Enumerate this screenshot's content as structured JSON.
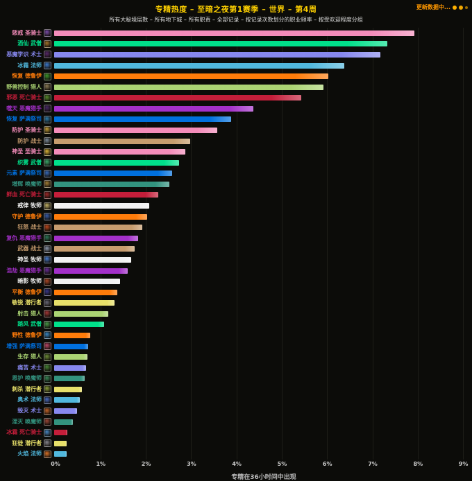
{
  "header": {
    "title": "专精热度 – 至暗之夜第1赛季 – 世界 – 第4周",
    "subtitle": "所有大秘境层数 – 所有地下城 – 所有职责 – 全部记录 – 按记录次数划分的职业频率 – 按受欢迎程度分组",
    "status": "更新数据中..."
  },
  "chart_data": {
    "type": "bar",
    "orientation": "horizontal",
    "title": "专精热度 – 至暗之夜第1赛季 – 世界 – 第4周",
    "subtitle": "所有大秘境层数 – 所有地下城 – 所有职责 – 全部记录 – 按记录次数划分的职业频率 – 按受欢迎程度分组",
    "xlabel": "专精在36小时间中出现",
    "xlim": [
      0,
      9.19
    ],
    "x_ticks": [
      "0%",
      "1%",
      "2%",
      "3%",
      "4%",
      "5%",
      "6%",
      "7%",
      "8%",
      "9%"
    ],
    "grid": true,
    "legend": "none",
    "unit": "percent",
    "rows": [
      {
        "label": "惩戒 圣骑士",
        "spec": "惩戒",
        "cls": "圣骑士",
        "value": 7.95,
        "color": "#F48CBA",
        "icon_color": "#7d4fae"
      },
      {
        "label": "酒仙 武僧",
        "spec": "酒仙",
        "cls": "武僧",
        "value": 7.35,
        "color": "#00E08A",
        "icon_color": "#a8782f"
      },
      {
        "label": "恶魔学识 术士",
        "spec": "恶魔学识",
        "cls": "术士",
        "value": 7.2,
        "color": "#8788EE",
        "icon_color": "#5a2a6e"
      },
      {
        "label": "冰霜 法师",
        "spec": "冰霜",
        "cls": "法师",
        "value": 6.4,
        "color": "#51B8DD",
        "icon_color": "#3e7fd4"
      },
      {
        "label": "恢复 德鲁伊",
        "spec": "恢复",
        "cls": "德鲁伊",
        "value": 6.05,
        "color": "#FF7C0A",
        "icon_color": "#3f9b2f"
      },
      {
        "label": "野兽控制 猎人",
        "spec": "野兽控制",
        "cls": "猎人",
        "value": 5.95,
        "color": "#ABD473",
        "icon_color": "#8f7f5a"
      },
      {
        "label": "邪恶 死亡骑士",
        "spec": "邪恶",
        "cls": "死亡骑士",
        "value": 5.45,
        "color": "#C41E3A",
        "icon_color": "#5a8f2f"
      },
      {
        "label": "噬天 恶魔猎手",
        "spec": "噬天",
        "cls": "恶魔猎手",
        "value": 4.4,
        "color": "#A330C9",
        "icon_color": "#4a2a6a"
      },
      {
        "label": "恢复 萨满祭司",
        "spec": "恢复",
        "cls": "萨满祭司",
        "value": 3.9,
        "color": "#0070DE",
        "icon_color": "#2f7fae"
      },
      {
        "label": "防护 圣骑士",
        "spec": "防护",
        "cls": "圣骑士",
        "value": 3.6,
        "color": "#F48CBA",
        "icon_color": "#c9a23a"
      },
      {
        "label": "防护 战士",
        "spec": "防护",
        "cls": "战士",
        "value": 3.0,
        "color": "#C79C6E",
        "icon_color": "#7f8fa0"
      },
      {
        "label": "神圣 圣骑士",
        "spec": "神圣",
        "cls": "圣骑士",
        "value": 2.9,
        "color": "#F48CBA",
        "icon_color": "#e0b83a"
      },
      {
        "label": "织雾 武僧",
        "spec": "织雾",
        "cls": "武僧",
        "value": 2.75,
        "color": "#00E08A",
        "icon_color": "#3fae6f"
      },
      {
        "label": "元素 萨满祭司",
        "spec": "元素",
        "cls": "萨满祭司",
        "value": 2.6,
        "color": "#0070DE",
        "icon_color": "#3a6fc0"
      },
      {
        "label": "增辉 唤魔师",
        "spec": "增辉",
        "cls": "唤魔师",
        "value": 2.55,
        "color": "#33937F",
        "icon_color": "#a8823a"
      },
      {
        "label": "鲜血 死亡骑士",
        "spec": "鲜血",
        "cls": "死亡骑士",
        "value": 2.3,
        "color": "#C41E3A",
        "icon_color": "#a02a2a"
      },
      {
        "label": "戒律 牧师",
        "spec": "戒律",
        "cls": "牧师",
        "value": 2.1,
        "color": "#F2F2F2",
        "icon_color": "#c9b86a"
      },
      {
        "label": "守护 德鲁伊",
        "spec": "守护",
        "cls": "德鲁伊",
        "value": 2.05,
        "color": "#FF7C0A",
        "icon_color": "#3a5fae"
      },
      {
        "label": "狂怒 战士",
        "spec": "狂怒",
        "cls": "战士",
        "value": 1.95,
        "color": "#C79C6E",
        "icon_color": "#c04a1f"
      },
      {
        "label": "复仇 恶魔猎手",
        "spec": "复仇",
        "cls": "恶魔猎手",
        "value": 1.85,
        "color": "#A330C9",
        "icon_color": "#2f7a5a"
      },
      {
        "label": "武器 战士",
        "spec": "武器",
        "cls": "战士",
        "value": 1.78,
        "color": "#C79C6E",
        "icon_color": "#8f9aae"
      },
      {
        "label": "神圣 牧师",
        "spec": "神圣",
        "cls": "牧师",
        "value": 1.7,
        "color": "#F2F2F2",
        "icon_color": "#4a7fd4"
      },
      {
        "label": "浩劫 恶魔猎手",
        "spec": "浩劫",
        "cls": "恶魔猎手",
        "value": 1.62,
        "color": "#A330C9",
        "icon_color": "#6a2f9e"
      },
      {
        "label": "暗影 牧师",
        "spec": "暗影",
        "cls": "牧师",
        "value": 1.45,
        "color": "#F2F2F2",
        "icon_color": "#b04a28"
      },
      {
        "label": "平衡 德鲁伊",
        "spec": "平衡",
        "cls": "德鲁伊",
        "value": 1.4,
        "color": "#FF7C0A",
        "icon_color": "#3a3a8e"
      },
      {
        "label": "敏锐 潜行者",
        "spec": "敏锐",
        "cls": "潜行者",
        "value": 1.34,
        "color": "#E8E06A",
        "icon_color": "#6a6a7a"
      },
      {
        "label": "射击 猎人",
        "spec": "射击",
        "cls": "猎人",
        "value": 1.2,
        "color": "#ABD473",
        "icon_color": "#a83a3a"
      },
      {
        "label": "踏风 武僧",
        "spec": "踏风",
        "cls": "武僧",
        "value": 1.1,
        "color": "#00E08A",
        "icon_color": "#4a9e4a"
      },
      {
        "label": "野性 德鲁伊",
        "spec": "野性",
        "cls": "德鲁伊",
        "value": 0.8,
        "color": "#FF7C0A",
        "icon_color": "#3a8ac8"
      },
      {
        "label": "增强 萨满祭司",
        "spec": "增强",
        "cls": "萨满祭司",
        "value": 0.75,
        "color": "#0070DE",
        "icon_color": "#c04a6a"
      },
      {
        "label": "生存 猎人",
        "spec": "生存",
        "cls": "猎人",
        "value": 0.73,
        "color": "#ABD473",
        "icon_color": "#6f8f3a"
      },
      {
        "label": "痛苦 术士",
        "spec": "痛苦",
        "cls": "术士",
        "value": 0.7,
        "color": "#8788EE",
        "icon_color": "#4a8a3a"
      },
      {
        "label": "恩护 唤魔师",
        "spec": "恩护",
        "cls": "唤魔师",
        "value": 0.68,
        "color": "#33937F",
        "icon_color": "#3a8a5a"
      },
      {
        "label": "刺杀 潜行者",
        "spec": "刺杀",
        "cls": "潜行者",
        "value": 0.62,
        "color": "#E8E06A",
        "icon_color": "#8aa03a"
      },
      {
        "label": "奥术 法师",
        "spec": "奥术",
        "cls": "法师",
        "value": 0.57,
        "color": "#51B8DD",
        "icon_color": "#4a6fc8"
      },
      {
        "label": "毁灭 术士",
        "spec": "毁灭",
        "cls": "术士",
        "value": 0.5,
        "color": "#8788EE",
        "icon_color": "#c8662a"
      },
      {
        "label": "湮灭 唤魔师",
        "spec": "湮灭",
        "cls": "唤魔师",
        "value": 0.42,
        "color": "#33937F",
        "icon_color": "#a04a3a"
      },
      {
        "label": "冰霜 死亡骑士",
        "spec": "冰霜",
        "cls": "死亡骑士",
        "value": 0.29,
        "color": "#C41E3A",
        "icon_color": "#4a8ac8"
      },
      {
        "label": "狂徒 潜行者",
        "spec": "狂徒",
        "cls": "潜行者",
        "value": 0.28,
        "color": "#E8E06A",
        "icon_color": "#8a8a92"
      },
      {
        "label": "火焰 法师",
        "spec": "火焰",
        "cls": "法师",
        "value": 0.27,
        "color": "#51B8DD",
        "icon_color": "#e0762a"
      }
    ]
  }
}
